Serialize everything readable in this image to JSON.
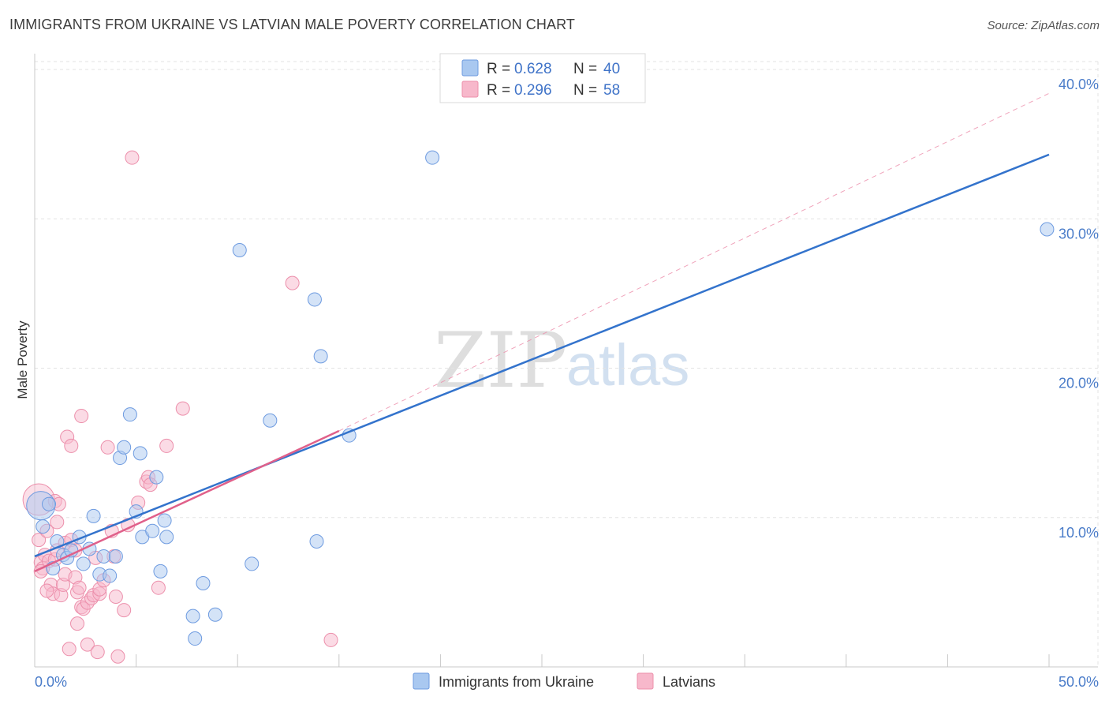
{
  "title": "IMMIGRANTS FROM UKRAINE VS LATVIAN MALE POVERTY CORRELATION CHART",
  "source": "Source: ZipAtlas.com",
  "watermark": {
    "zip": "ZIP",
    "atlas": "atlas"
  },
  "colors": {
    "blue_fill": "#a9c8f0",
    "blue_stroke": "#6e9be0",
    "blue_line": "#3373cc",
    "pink_fill": "#f7b8cb",
    "pink_stroke": "#ec8fab",
    "pink_line": "#e0608a",
    "grid": "#e3e3e3",
    "axis_label": "#4a7cc9"
  },
  "legend": {
    "series1": {
      "r_label": "R =",
      "r_value": "0.628",
      "n_label": "N =",
      "n_value": "40"
    },
    "series2": {
      "r_label": "R =",
      "r_value": "0.296",
      "n_label": "N =",
      "n_value": "58"
    }
  },
  "chart_data": {
    "type": "scatter",
    "title": "IMMIGRANTS FROM UKRAINE VS LATVIAN MALE POVERTY CORRELATION CHART",
    "xlabel": "",
    "ylabel": "Male Poverty",
    "xlim": [
      0,
      50
    ],
    "ylim": [
      0,
      40
    ],
    "x_tick_labels": [
      "0.0%",
      "50.0%"
    ],
    "y_ticks": [
      10,
      20,
      30,
      40
    ],
    "y_tick_labels": [
      "10.0%",
      "20.0%",
      "30.0%",
      "40.0%"
    ],
    "grid": true,
    "series": [
      {
        "name": "Immigrants from Ukraine",
        "r": 0.628,
        "n": 40,
        "trend": {
          "x": [
            0,
            50
          ],
          "y": [
            7.4,
            34.3
          ]
        },
        "points": [
          {
            "x": 0.3,
            "y": 10.8,
            "big": true
          },
          {
            "x": 0.4,
            "y": 9.4
          },
          {
            "x": 0.7,
            "y": 10.9
          },
          {
            "x": 0.9,
            "y": 6.6
          },
          {
            "x": 1.1,
            "y": 8.4
          },
          {
            "x": 1.4,
            "y": 7.5
          },
          {
            "x": 1.6,
            "y": 7.3
          },
          {
            "x": 1.8,
            "y": 7.8
          },
          {
            "x": 2.2,
            "y": 8.7
          },
          {
            "x": 2.4,
            "y": 6.9
          },
          {
            "x": 2.7,
            "y": 7.9
          },
          {
            "x": 2.9,
            "y": 10.1
          },
          {
            "x": 3.2,
            "y": 6.2
          },
          {
            "x": 3.4,
            "y": 7.4
          },
          {
            "x": 3.7,
            "y": 6.1
          },
          {
            "x": 4.0,
            "y": 7.4
          },
          {
            "x": 4.2,
            "y": 14.0
          },
          {
            "x": 4.4,
            "y": 14.7
          },
          {
            "x": 4.7,
            "y": 16.9
          },
          {
            "x": 5.0,
            "y": 10.4
          },
          {
            "x": 5.2,
            "y": 14.3
          },
          {
            "x": 5.3,
            "y": 8.7
          },
          {
            "x": 5.8,
            "y": 9.1
          },
          {
            "x": 6.0,
            "y": 12.7
          },
          {
            "x": 6.2,
            "y": 6.4
          },
          {
            "x": 6.4,
            "y": 9.8
          },
          {
            "x": 6.5,
            "y": 8.7
          },
          {
            "x": 7.8,
            "y": 3.4
          },
          {
            "x": 8.3,
            "y": 5.6
          },
          {
            "x": 7.9,
            "y": 1.9
          },
          {
            "x": 8.9,
            "y": 3.5
          },
          {
            "x": 10.1,
            "y": 27.9
          },
          {
            "x": 10.7,
            "y": 6.9
          },
          {
            "x": 11.6,
            "y": 16.5
          },
          {
            "x": 13.8,
            "y": 24.6
          },
          {
            "x": 13.9,
            "y": 8.4
          },
          {
            "x": 14.1,
            "y": 20.8
          },
          {
            "x": 15.5,
            "y": 15.5
          },
          {
            "x": 19.6,
            "y": 34.1
          },
          {
            "x": 49.9,
            "y": 29.3
          }
        ]
      },
      {
        "name": "Latvians",
        "r": 0.296,
        "n": 58,
        "trend": {
          "x": [
            0,
            15
          ],
          "y": [
            6.4,
            15.8
          ]
        },
        "trend_ext": {
          "x": [
            15,
            50
          ],
          "y": [
            15.8,
            38.4
          ]
        },
        "points": [
          {
            "x": 0.2,
            "y": 11.2,
            "big": true
          },
          {
            "x": 0.2,
            "y": 8.5
          },
          {
            "x": 0.3,
            "y": 7.0
          },
          {
            "x": 0.4,
            "y": 6.6
          },
          {
            "x": 0.5,
            "y": 7.5
          },
          {
            "x": 0.6,
            "y": 9.1
          },
          {
            "x": 0.7,
            "y": 7.1
          },
          {
            "x": 0.8,
            "y": 5.5
          },
          {
            "x": 0.9,
            "y": 4.9
          },
          {
            "x": 1.0,
            "y": 11.1
          },
          {
            "x": 1.0,
            "y": 7.2
          },
          {
            "x": 1.1,
            "y": 9.7
          },
          {
            "x": 1.2,
            "y": 10.9
          },
          {
            "x": 1.3,
            "y": 4.8
          },
          {
            "x": 1.4,
            "y": 5.5
          },
          {
            "x": 1.5,
            "y": 8.3
          },
          {
            "x": 1.5,
            "y": 6.2
          },
          {
            "x": 1.6,
            "y": 15.4
          },
          {
            "x": 1.7,
            "y": 1.2
          },
          {
            "x": 1.8,
            "y": 8.5
          },
          {
            "x": 1.8,
            "y": 14.8
          },
          {
            "x": 2.0,
            "y": 7.8
          },
          {
            "x": 2.0,
            "y": 6.0
          },
          {
            "x": 2.1,
            "y": 2.9
          },
          {
            "x": 2.1,
            "y": 5.0
          },
          {
            "x": 2.3,
            "y": 16.8
          },
          {
            "x": 2.2,
            "y": 5.3
          },
          {
            "x": 2.3,
            "y": 4.0
          },
          {
            "x": 2.4,
            "y": 3.9
          },
          {
            "x": 2.6,
            "y": 4.3
          },
          {
            "x": 2.6,
            "y": 1.5
          },
          {
            "x": 2.8,
            "y": 4.6
          },
          {
            "x": 2.9,
            "y": 4.8
          },
          {
            "x": 3.0,
            "y": 7.3
          },
          {
            "x": 3.1,
            "y": 1.0
          },
          {
            "x": 3.2,
            "y": 4.9
          },
          {
            "x": 3.2,
            "y": 5.2
          },
          {
            "x": 3.4,
            "y": 5.8
          },
          {
            "x": 3.6,
            "y": 14.7
          },
          {
            "x": 3.8,
            "y": 9.1
          },
          {
            "x": 3.9,
            "y": 7.4
          },
          {
            "x": 4.0,
            "y": 4.7
          },
          {
            "x": 4.1,
            "y": 0.7
          },
          {
            "x": 4.4,
            "y": 3.8
          },
          {
            "x": 4.6,
            "y": 9.5
          },
          {
            "x": 4.8,
            "y": 34.1
          },
          {
            "x": 5.1,
            "y": 11.0
          },
          {
            "x": 5.5,
            "y": 12.4
          },
          {
            "x": 5.6,
            "y": 12.7
          },
          {
            "x": 5.7,
            "y": 12.2
          },
          {
            "x": 6.1,
            "y": 5.3
          },
          {
            "x": 6.5,
            "y": 14.8
          },
          {
            "x": 7.3,
            "y": 17.3
          },
          {
            "x": 12.7,
            "y": 25.7
          },
          {
            "x": 14.6,
            "y": 1.8
          },
          {
            "x": 0.3,
            "y": 6.4
          },
          {
            "x": 0.6,
            "y": 5.1
          },
          {
            "x": 1.1,
            "y": 7.8
          }
        ]
      }
    ]
  }
}
